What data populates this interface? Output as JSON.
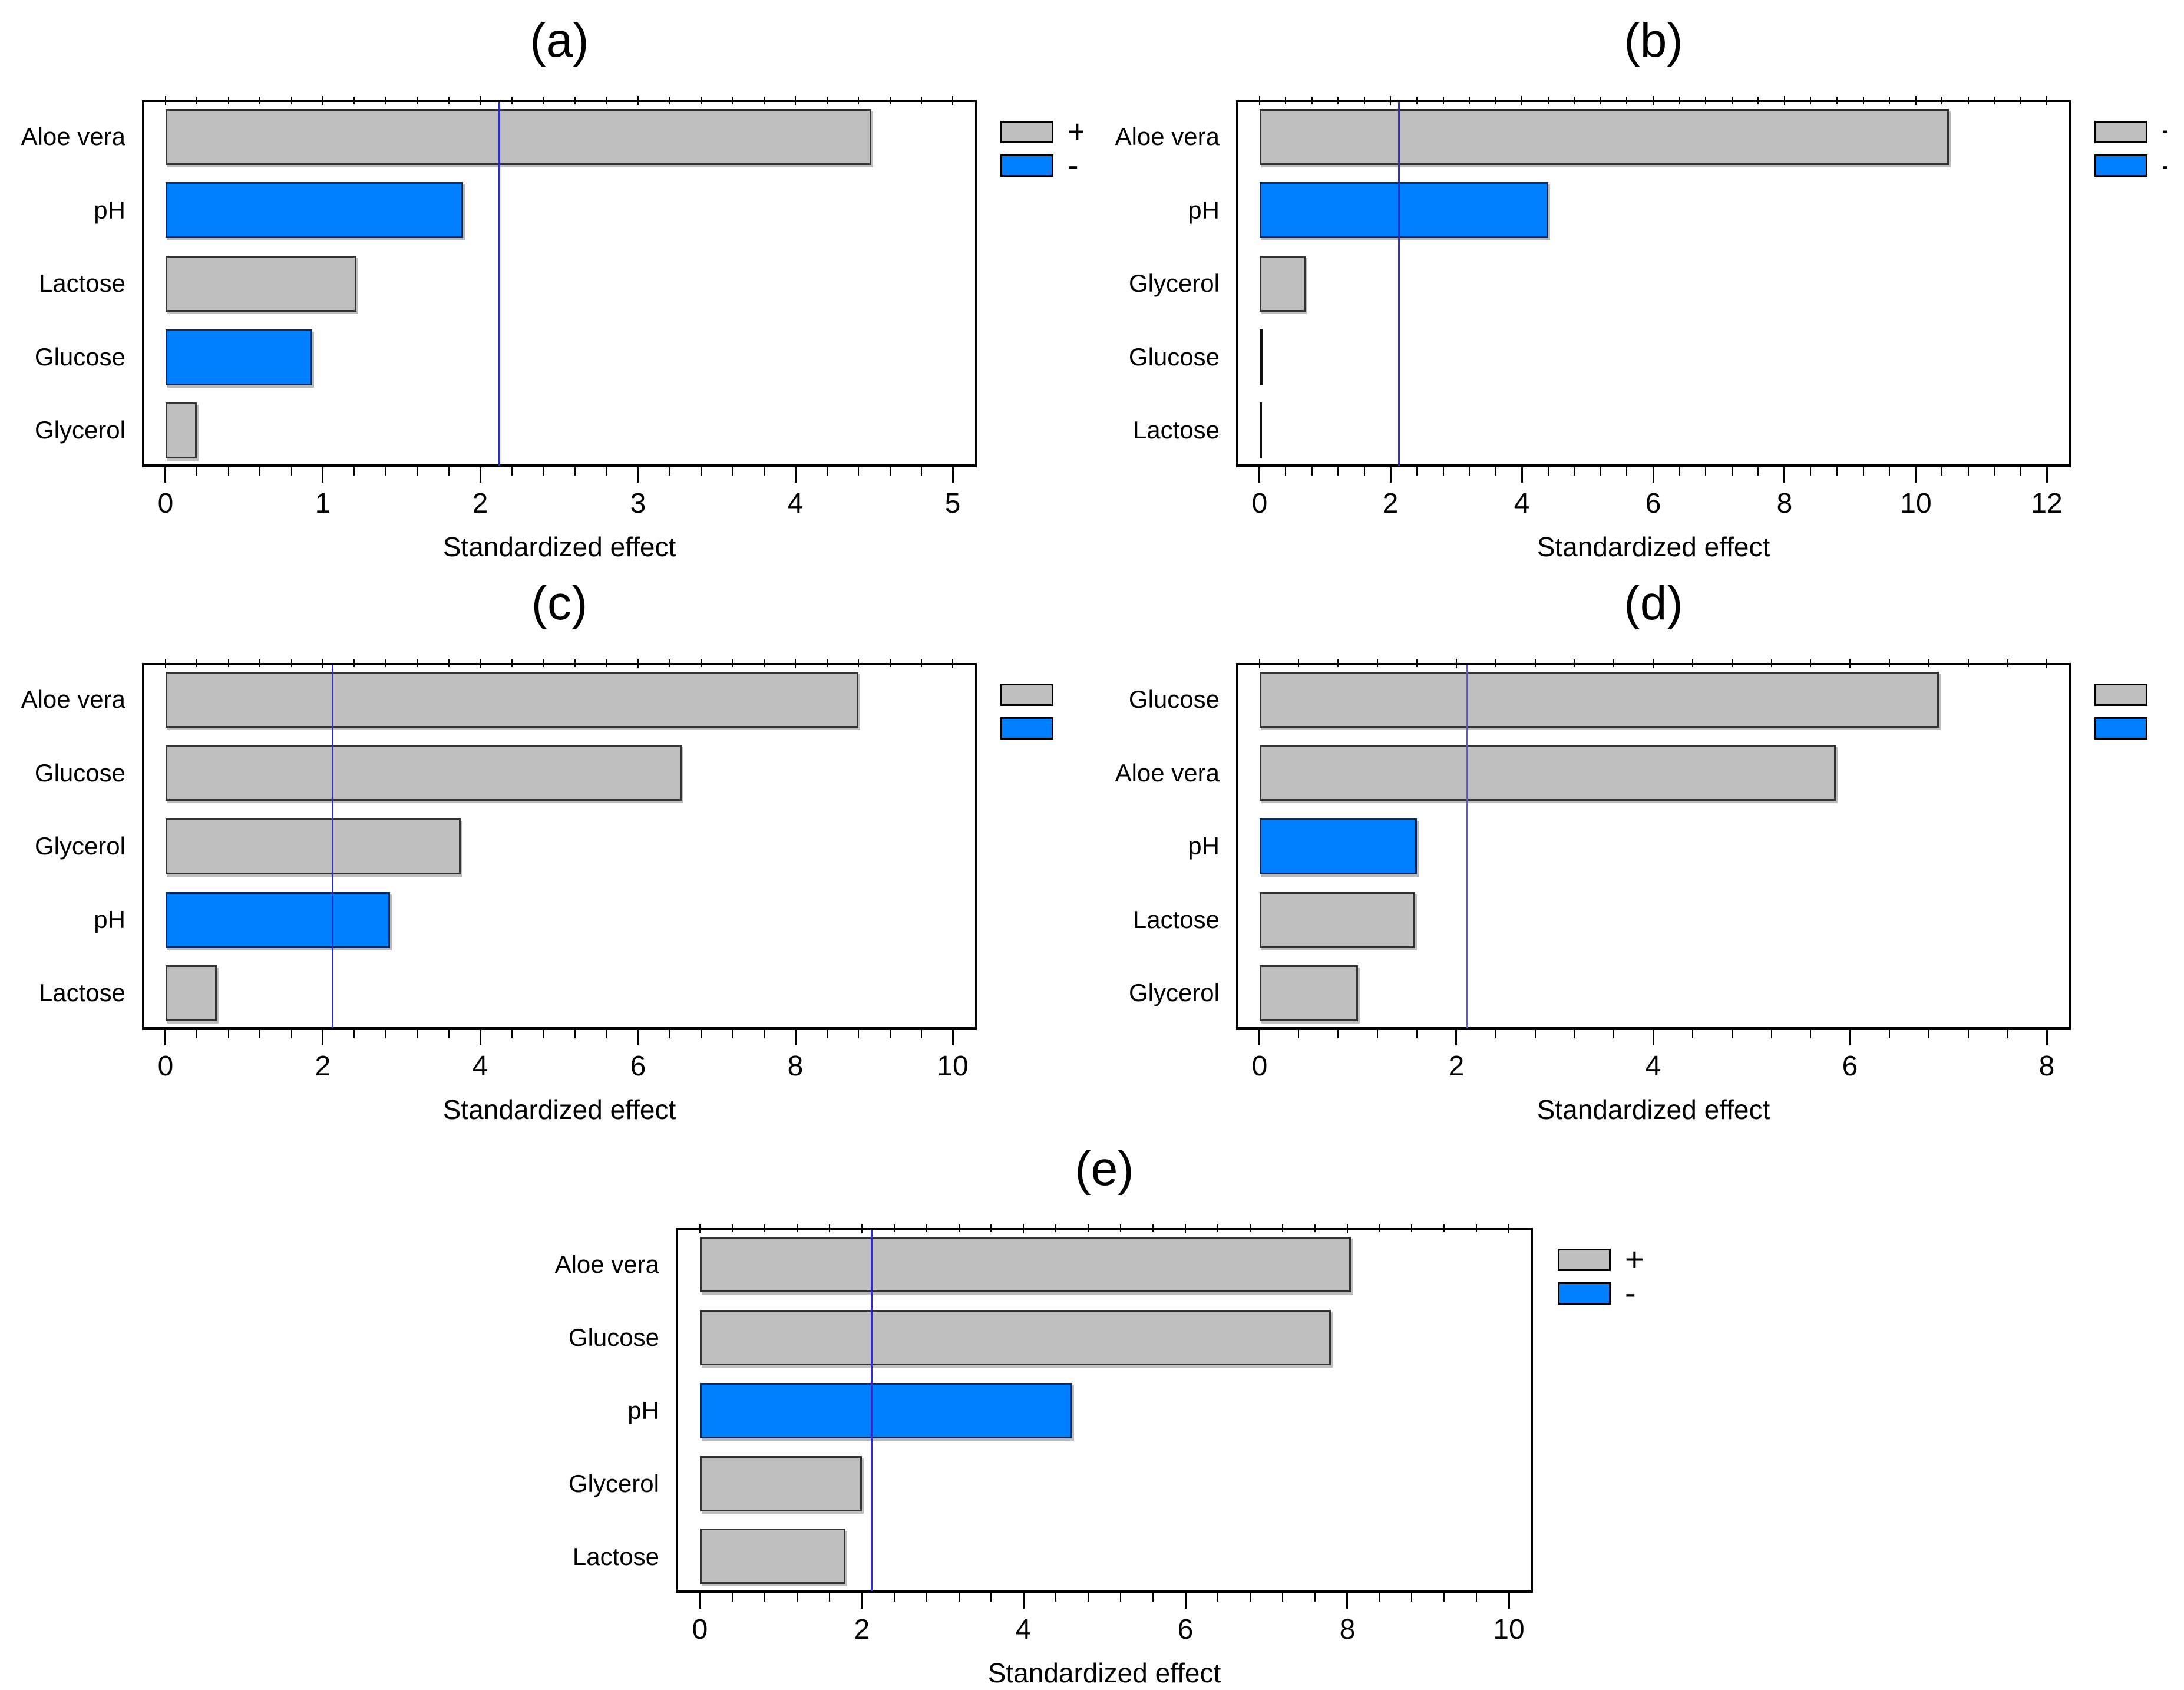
{
  "figure": {
    "background": "#ffffff",
    "description": "Pareto charts of standardized effects, panels (a) to (e)"
  },
  "legend": {
    "positive": "+",
    "negative": "-",
    "positive_color": "#bebebe",
    "negative_color": "#0080ff"
  },
  "colors": {
    "bar_positive_fill": "#bebebe",
    "bar_negative_fill": "#0080ff",
    "bar_border": "#333333",
    "bar_negative_border": "#0a2a5c",
    "axis": "#000000",
    "text": "#000000"
  },
  "chart_data": [
    {
      "type": "bar",
      "orientation": "horizontal",
      "title": "(a)",
      "xlabel": "Standardized effect",
      "categories": [
        "Aloe vera",
        "pH",
        "Lactose",
        "Glucose",
        "Glycerol"
      ],
      "values": [
        4.48,
        1.89,
        1.21,
        0.93,
        0.2
      ],
      "signs": [
        "+",
        "-",
        "+",
        "-",
        "+"
      ],
      "xticks": [
        0,
        1,
        2,
        3,
        4,
        5
      ],
      "xlim": [
        0,
        5.2
      ],
      "minor_ticks_per_interval": 4,
      "reference_line": 2.12,
      "reference_line_color": "#2e2ec4",
      "legend_labels_visibility": "partial"
    },
    {
      "type": "bar",
      "orientation": "horizontal",
      "title": "(b)",
      "xlabel": "Standardized effect",
      "categories": [
        "Aloe vera",
        "pH",
        "Glycerol",
        "Glucose",
        "Lactose"
      ],
      "values": [
        10.5,
        4.4,
        0.7,
        0.05,
        0.03
      ],
      "signs": [
        "+",
        "-",
        "+",
        "line",
        "line"
      ],
      "xticks": [
        0,
        2,
        4,
        6,
        8,
        10,
        12
      ],
      "xlim": [
        0,
        12.4
      ],
      "minor_ticks_per_interval": 4,
      "reference_line": 2.12,
      "reference_line_color": "#2e2ec4",
      "legend_labels_visibility": "sliver"
    },
    {
      "type": "bar",
      "orientation": "horizontal",
      "title": "(c)",
      "xlabel": "Standardized effect",
      "categories": [
        "Aloe vera",
        "Glucose",
        "Glycerol",
        "pH",
        "Lactose"
      ],
      "values": [
        8.8,
        6.55,
        3.75,
        2.85,
        0.65
      ],
      "signs": [
        "+",
        "+",
        "+",
        "-",
        "+"
      ],
      "xticks": [
        0,
        2,
        4,
        6,
        8,
        10
      ],
      "xlim": [
        0,
        10.3
      ],
      "minor_ticks_per_interval": 4,
      "reference_line": 2.12,
      "reference_line_color": "#2e2ec4",
      "legend_labels_visibility": "hidden"
    },
    {
      "type": "bar",
      "orientation": "horizontal",
      "title": "(d)",
      "xlabel": "Standardized effect",
      "categories": [
        "Glucose",
        "Aloe vera",
        "pH",
        "Lactose",
        "Glycerol"
      ],
      "values": [
        6.9,
        5.85,
        1.6,
        1.58,
        1.0
      ],
      "signs": [
        "+",
        "+",
        "-",
        "+",
        "+"
      ],
      "xticks": [
        0,
        2,
        4,
        6,
        8
      ],
      "xlim": [
        0,
        8.2
      ],
      "minor_ticks_per_interval": 4,
      "reference_line": 2.11,
      "reference_line_color": "#5e5ad8",
      "legend_labels_visibility": "hidden"
    },
    {
      "type": "bar",
      "orientation": "horizontal",
      "title": "(e)",
      "xlabel": "Standardized effect",
      "categories": [
        "Aloe vera",
        "Glucose",
        "pH",
        "Glycerol",
        "Lactose"
      ],
      "values": [
        8.05,
        7.8,
        4.6,
        2.0,
        1.8
      ],
      "signs": [
        "+",
        "+",
        "-",
        "+",
        "+"
      ],
      "xticks": [
        0,
        2,
        4,
        6,
        8,
        10
      ],
      "xlim": [
        0,
        10.3
      ],
      "minor_ticks_per_interval": 4,
      "reference_line": 2.12,
      "reference_line_color": "#2e2ec4",
      "legend_labels_visibility": "full"
    }
  ]
}
